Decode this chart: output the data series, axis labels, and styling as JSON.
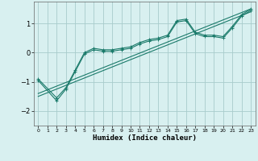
{
  "xlabel": "Humidex (Indice chaleur)",
  "ylabel": "",
  "background_color": "#d8f0f0",
  "grid_color": "#a8cccc",
  "line_color": "#1a7a6a",
  "xlim": [
    -0.5,
    23.5
  ],
  "ylim": [
    -2.5,
    1.75
  ],
  "xticks": [
    0,
    1,
    2,
    3,
    4,
    5,
    6,
    7,
    8,
    9,
    10,
    11,
    12,
    13,
    14,
    15,
    16,
    17,
    18,
    19,
    20,
    21,
    22,
    23
  ],
  "yticks": [
    -2,
    -1,
    0,
    1
  ],
  "curve1_x": [
    0,
    2,
    3,
    4,
    5,
    6,
    7,
    8,
    9,
    10,
    11,
    12,
    13,
    14,
    15,
    16,
    17,
    18,
    19,
    20,
    21,
    22,
    23
  ],
  "curve1_y": [
    -0.9,
    -1.55,
    -1.2,
    -0.6,
    0.0,
    0.15,
    0.1,
    0.1,
    0.15,
    0.2,
    0.35,
    0.45,
    0.5,
    0.6,
    1.1,
    1.15,
    0.7,
    0.6,
    0.6,
    0.55,
    0.9,
    1.3,
    1.5
  ],
  "curve2_x": [
    0,
    2,
    3,
    4,
    5,
    6,
    7,
    8,
    9,
    10,
    11,
    12,
    13,
    14,
    15,
    16,
    17,
    18,
    19,
    20,
    21,
    22,
    23
  ],
  "curve2_y": [
    -0.95,
    -1.65,
    -1.25,
    -0.65,
    -0.05,
    0.1,
    0.05,
    0.05,
    0.1,
    0.15,
    0.3,
    0.4,
    0.45,
    0.55,
    1.05,
    1.1,
    0.65,
    0.55,
    0.55,
    0.5,
    0.85,
    1.25,
    1.45
  ],
  "line1_x": [
    0,
    23
  ],
  "line1_y": [
    -1.4,
    1.5
  ],
  "line2_x": [
    0,
    23
  ],
  "line2_y": [
    -1.5,
    1.4
  ],
  "figsize": [
    3.2,
    2.0
  ],
  "dpi": 100
}
